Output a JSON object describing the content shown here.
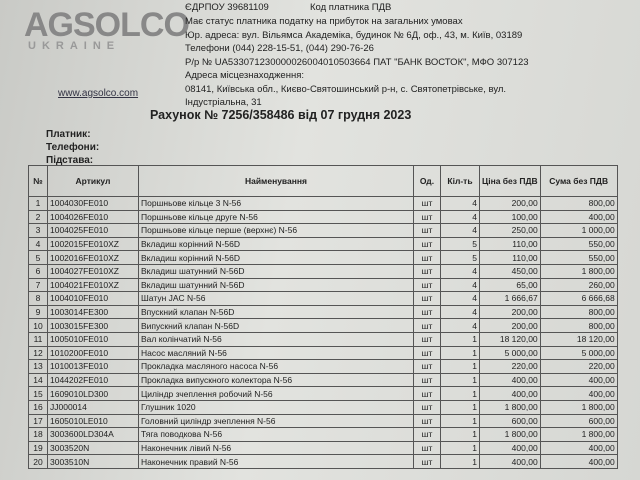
{
  "header": {
    "logo": "AGSOLCO",
    "logo_sub": "UKRAINE",
    "website": "www.agsolco.com",
    "edrpou": "ЄДРПОУ 39681109",
    "vat_code": "Код платника ПДВ",
    "lines": [
      "Має статус платника податку на прибуток на загальних умовах",
      "Юр. адреса: вул. Вільямса Академіка, будинок № 6Д, оф., 43, м. Київ, 03189",
      "Телефони (044) 228-15-51, (044) 290-76-26",
      "Р/р № UA533071230000026004010503664 ПАТ \"БАНК ВОСТОК\", МФО 307123",
      "Адреса місцезнаходження:",
      "08141, Київська обл., Києво-Святошинський р-н, с. Святопетрівське, вул.",
      "Індустріальна, 31"
    ]
  },
  "title": "Рахунок № 7256/358486 від 07 грудня 2023",
  "fields": [
    "Платник:",
    "Телефони:",
    "Підстава:"
  ],
  "table": {
    "columns": [
      "№",
      "Артикул",
      "Найменування",
      "Од.",
      "Кіл-ть",
      "Ціна без ПДВ",
      "Сума без ПДВ"
    ],
    "rows": [
      [
        "1",
        "1004030FE010",
        "Поршньове кільце 3 N-56",
        "шт",
        "4",
        "200,00",
        "800,00"
      ],
      [
        "2",
        "1004026FE010",
        "Поршньове кільце друге N-56",
        "шт",
        "4",
        "100,00",
        "400,00"
      ],
      [
        "3",
        "1004025FE010",
        "Поршньове кільце перше (верхнє) N-56",
        "шт",
        "4",
        "250,00",
        "1 000,00"
      ],
      [
        "4",
        "1002015FE010XZ",
        "Вкладиш корінний N-56D",
        "шт",
        "5",
        "110,00",
        "550,00"
      ],
      [
        "5",
        "1002016FE010XZ",
        "Вкладиш корінний N-56D",
        "шт",
        "5",
        "110,00",
        "550,00"
      ],
      [
        "6",
        "1004027FE010XZ",
        "Вкладиш шатунний N-56D",
        "шт",
        "4",
        "450,00",
        "1 800,00"
      ],
      [
        "7",
        "1004021FE010XZ",
        "Вкладиш шатунний N-56D",
        "шт",
        "4",
        "65,00",
        "260,00"
      ],
      [
        "8",
        "1004010FE010",
        "Шатун JAC N-56",
        "шт",
        "4",
        "1 666,67",
        "6 666,68"
      ],
      [
        "9",
        "1003014FE300",
        "Впускний клапан N-56D",
        "шт",
        "4",
        "200,00",
        "800,00"
      ],
      [
        "10",
        "1003015FE300",
        "Випускний клапан N-56D",
        "шт",
        "4",
        "200,00",
        "800,00"
      ],
      [
        "11",
        "1005010FE010",
        "Вал колінчатий N-56",
        "шт",
        "1",
        "18 120,00",
        "18 120,00"
      ],
      [
        "12",
        "1010200FE010",
        "Насос масляний N-56",
        "шт",
        "1",
        "5 000,00",
        "5 000,00"
      ],
      [
        "13",
        "1010013FE010",
        "Прокладка масляного насоса N-56",
        "шт",
        "1",
        "220,00",
        "220,00"
      ],
      [
        "14",
        "1044202FE010",
        "Прокладка випускного колектора N-56",
        "шт",
        "1",
        "400,00",
        "400,00"
      ],
      [
        "15",
        "1609010LD300",
        "Циліндр зчеплення робочий N-56",
        "шт",
        "1",
        "400,00",
        "400,00"
      ],
      [
        "16",
        "JJ000014",
        "Глушник 1020",
        "шт",
        "1",
        "1 800,00",
        "1 800,00"
      ],
      [
        "17",
        "1605010LE010",
        "Головний циліндр зчеплення N-56",
        "шт",
        "1",
        "600,00",
        "600,00"
      ],
      [
        "18",
        "3003600LD304A",
        "Тяга поводкова N-56",
        "шт",
        "1",
        "1 800,00",
        "1 800,00"
      ],
      [
        "19",
        "3003520N",
        "Наконечник лівий N-56",
        "шт",
        "1",
        "400,00",
        "400,00"
      ],
      [
        "20",
        "3003510N",
        "Наконечник правий N-56",
        "шт",
        "1",
        "400,00",
        "400,00"
      ]
    ]
  }
}
